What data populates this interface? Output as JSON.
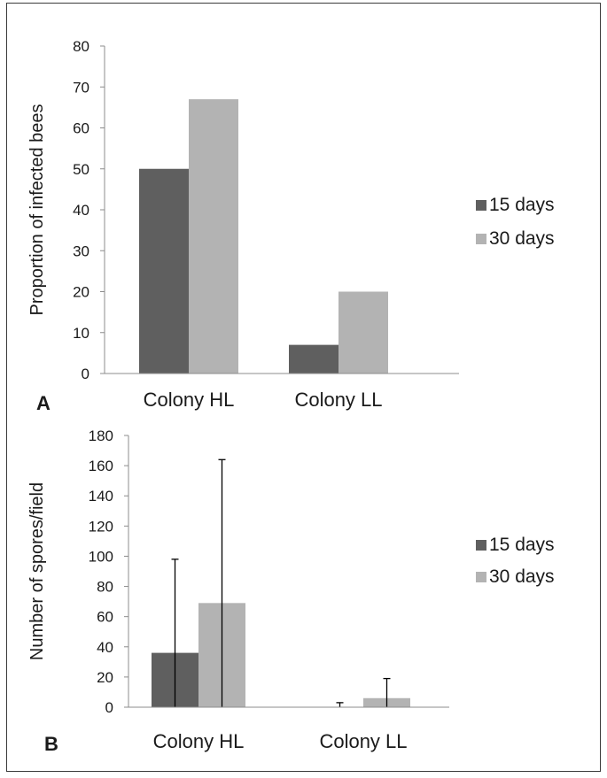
{
  "colors": {
    "15 days": "#5f5f5f",
    "30 days": "#b3b3b3",
    "axis": "#8c8c8c",
    "error": "#000000"
  },
  "chart_data": [
    {
      "type": "bar",
      "panel_label": "A",
      "categories": [
        "Colony HL",
        "Colony LL"
      ],
      "series": [
        {
          "name": "15 days",
          "values": [
            50,
            7
          ]
        },
        {
          "name": "30 days",
          "values": [
            67,
            20
          ]
        }
      ],
      "ylabel": "Proportion of infected bees",
      "xlabel": "",
      "ylim": [
        0,
        80
      ],
      "yticks": [
        0,
        10,
        20,
        30,
        40,
        50,
        60,
        70,
        80
      ],
      "legend": "right",
      "grid": false
    },
    {
      "type": "bar",
      "panel_label": "B",
      "categories": [
        "Colony HL",
        "Colony LL"
      ],
      "series": [
        {
          "name": "15 days",
          "values": [
            36,
            0
          ],
          "error_upper": [
            98,
            3
          ]
        },
        {
          "name": "30 days",
          "values": [
            69,
            6
          ],
          "error_upper": [
            164,
            19
          ]
        }
      ],
      "ylabel": "Number of spores/field",
      "xlabel": "",
      "ylim": [
        0,
        180
      ],
      "yticks": [
        0,
        20,
        40,
        60,
        80,
        100,
        120,
        140,
        160,
        180
      ],
      "legend": "right",
      "grid": false
    }
  ]
}
